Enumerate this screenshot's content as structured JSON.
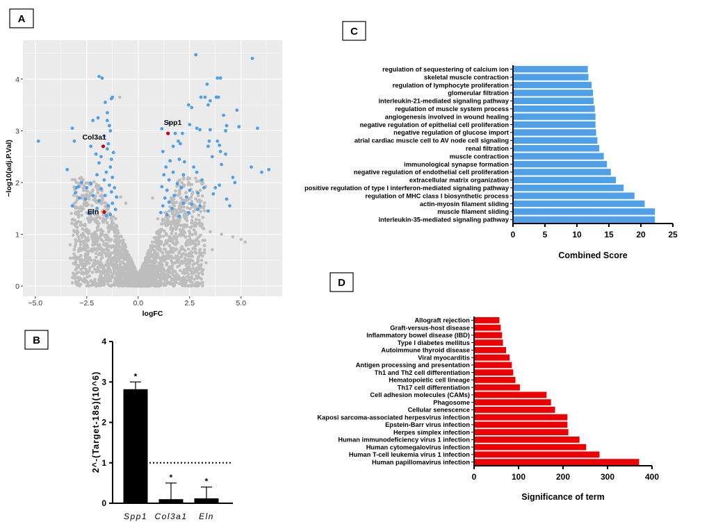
{
  "panels": {
    "a": "A",
    "b": "B",
    "c": "C",
    "d": "D"
  },
  "chart_data": [
    {
      "id": "A",
      "type": "scatter",
      "title": "",
      "xlabel": "logFC",
      "ylabel": "−log10(adj.P.Val)",
      "xlim": [
        -5.6,
        7.0
      ],
      "ylim": [
        -0.2,
        4.75
      ],
      "xticks": [
        -5.0,
        -2.5,
        0.0,
        2.5,
        5.0
      ],
      "xtick_labels": [
        "−5.0",
        "−2.5",
        "0.0",
        "2.5",
        "5.0"
      ],
      "yticks": [
        0,
        1,
        2,
        3,
        4
      ],
      "ytick_labels": [
        "0",
        "1",
        "2",
        "3",
        "4"
      ],
      "grid": true,
      "colors": {
        "background": "#ebebeb",
        "significant": "#4f9fe9",
        "nonsignificant": "#bdbdbd",
        "highlight": "#cc0000",
        "grid": "#ffffff"
      },
      "highlighted_genes": [
        {
          "name": "Col3a1",
          "x": -1.7,
          "y": 2.7
        },
        {
          "name": "Spp1",
          "x": 1.45,
          "y": 2.95
        },
        {
          "name": "Eln",
          "x": -1.65,
          "y": 1.43
        }
      ],
      "significant_points": [
        [
          2.8,
          4.47
        ],
        [
          5.55,
          4.4
        ],
        [
          -1.9,
          4.05
        ],
        [
          -1.75,
          4.02
        ],
        [
          3.85,
          4.02
        ],
        [
          4.0,
          4.02
        ],
        [
          -1.3,
          3.62
        ],
        [
          -1.25,
          3.65
        ],
        [
          3.05,
          3.65
        ],
        [
          3.25,
          3.65
        ],
        [
          3.8,
          3.65
        ],
        [
          3.9,
          3.65
        ],
        [
          3.5,
          3.58
        ],
        [
          2.45,
          3.5
        ],
        [
          2.6,
          3.45
        ],
        [
          3.4,
          3.5
        ],
        [
          4.8,
          3.4
        ],
        [
          -1.6,
          3.55
        ],
        [
          -1.5,
          3.35
        ],
        [
          -2.2,
          3.2
        ],
        [
          -1.5,
          3.2
        ],
        [
          -1.4,
          3.1
        ],
        [
          1.5,
          3.15
        ],
        [
          2.5,
          3.12
        ],
        [
          4.3,
          3.1
        ],
        [
          4.9,
          3.08
        ],
        [
          5.8,
          3.05
        ],
        [
          -3.2,
          3.05
        ],
        [
          -1.35,
          3.0
        ],
        [
          -1.65,
          2.9
        ],
        [
          1.15,
          3.04
        ],
        [
          2.85,
          3.05
        ],
        [
          3.0,
          3.02
        ],
        [
          3.5,
          3.02
        ],
        [
          4.25,
          3.0
        ],
        [
          1.8,
          2.95
        ],
        [
          2.15,
          2.95
        ],
        [
          -4.85,
          2.8
        ],
        [
          -3.1,
          2.8
        ],
        [
          3.45,
          2.8
        ],
        [
          3.85,
          2.8
        ],
        [
          -1.45,
          2.75
        ],
        [
          2.05,
          2.75
        ],
        [
          3.95,
          2.72
        ],
        [
          -2.3,
          2.7
        ],
        [
          -1.5,
          2.65
        ],
        [
          1.7,
          2.7
        ],
        [
          3.4,
          2.7
        ],
        [
          4.0,
          2.6
        ],
        [
          4.25,
          2.55
        ],
        [
          -1.2,
          2.58
        ],
        [
          1.2,
          2.6
        ],
        [
          -1.8,
          2.5
        ],
        [
          -1.3,
          2.45
        ],
        [
          2.0,
          2.45
        ],
        [
          3.6,
          2.5
        ],
        [
          -1.9,
          2.38
        ],
        [
          1.55,
          2.42
        ],
        [
          2.25,
          2.4
        ],
        [
          -1.35,
          2.3
        ],
        [
          1.35,
          2.3
        ],
        [
          4.05,
          2.35
        ],
        [
          5.5,
          2.3
        ],
        [
          -3.45,
          2.25
        ],
        [
          -1.55,
          2.2
        ],
        [
          1.7,
          2.2
        ],
        [
          6.35,
          2.25
        ],
        [
          -2.0,
          2.15
        ],
        [
          -1.25,
          2.1
        ],
        [
          1.25,
          2.15
        ],
        [
          2.2,
          2.15
        ],
        [
          2.85,
          2.2
        ],
        [
          6.0,
          2.2
        ],
        [
          -1.65,
          2.05
        ],
        [
          1.5,
          2.05
        ],
        [
          3.1,
          2.05
        ],
        [
          4.6,
          2.1
        ],
        [
          -2.75,
          2.0
        ],
        [
          -2.3,
          1.98
        ],
        [
          -1.4,
          1.95
        ],
        [
          1.9,
          1.98
        ],
        [
          4.7,
          2.0
        ],
        [
          -2.9,
          1.92
        ],
        [
          -2.5,
          1.9
        ],
        [
          -1.15,
          1.9
        ],
        [
          1.15,
          1.92
        ],
        [
          2.1,
          1.9
        ],
        [
          3.2,
          1.9
        ],
        [
          -1.8,
          1.88
        ],
        [
          1.4,
          1.85
        ],
        [
          2.5,
          1.85
        ],
        [
          -3.05,
          1.8
        ],
        [
          -1.3,
          1.82
        ],
        [
          2.9,
          1.8
        ],
        [
          -2.2,
          1.75
        ],
        [
          -1.6,
          1.75
        ],
        [
          1.75,
          1.75
        ],
        [
          3.65,
          1.78
        ],
        [
          -1.05,
          1.72
        ],
        [
          1.3,
          1.7
        ],
        [
          2.35,
          1.72
        ],
        [
          -2.55,
          1.68
        ],
        [
          -1.9,
          1.65
        ],
        [
          4.3,
          1.68
        ],
        [
          -1.25,
          1.6
        ],
        [
          1.5,
          1.62
        ],
        [
          2.2,
          1.6
        ],
        [
          2.6,
          1.58
        ],
        [
          -3.2,
          1.55
        ],
        [
          -1.45,
          1.55
        ],
        [
          1.2,
          1.55
        ],
        [
          3.0,
          1.55
        ],
        [
          4.45,
          1.55
        ],
        [
          -2.0,
          1.5
        ],
        [
          -1.1,
          1.48
        ],
        [
          1.65,
          1.5
        ],
        [
          2.9,
          1.48
        ],
        [
          -2.25,
          1.42
        ],
        [
          1.1,
          1.42
        ],
        [
          2.45,
          1.42
        ],
        [
          -1.35,
          1.38
        ],
        [
          1.4,
          1.38
        ],
        [
          3.4,
          1.45
        ],
        [
          -2.4,
          1.4
        ],
        [
          -1.55,
          1.36
        ],
        [
          2.0,
          1.35
        ],
        [
          -3.0,
          1.9
        ],
        [
          -2.85,
          1.7
        ],
        [
          3.75,
          1.9
        ],
        [
          3.95,
          1.95
        ],
        [
          2.7,
          2.3
        ],
        [
          1.95,
          2.8
        ],
        [
          -2.05,
          2.55
        ],
        [
          -1.95,
          3.25
        ],
        [
          4.15,
          3.3
        ],
        [
          3.35,
          3.9
        ]
      ],
      "nonsignificant_points": [
        [
          -0.9,
          3.65
        ],
        [
          -0.6,
          1.6
        ],
        [
          -0.85,
          1.72
        ],
        [
          -1.1,
          1.3
        ],
        [
          0.95,
          1.3
        ],
        [
          0.7,
          1.7
        ],
        [
          1.6,
          1.2
        ],
        [
          2.3,
          1.3
        ],
        [
          3.1,
          1.2
        ],
        [
          3.5,
          1.05
        ],
        [
          4.05,
          1.0
        ],
        [
          4.6,
          0.95
        ],
        [
          5.0,
          0.9
        ],
        [
          5.2,
          0.85
        ],
        [
          -2.5,
          1.1
        ],
        [
          -2.9,
          0.95
        ],
        [
          -1.95,
          1.2
        ],
        [
          -1.6,
          0.95
        ],
        [
          1.85,
          1.1
        ],
        [
          2.6,
          1.15
        ],
        [
          2.95,
          0.95
        ],
        [
          -3.3,
          0.8
        ],
        [
          3.6,
          0.7
        ],
        [
          -2.1,
          0.7
        ],
        [
          2.3,
          0.6
        ],
        [
          -1.75,
          0.55
        ],
        [
          1.95,
          0.5
        ],
        [
          3.3,
          0.45
        ],
        [
          2.95,
          0.4
        ],
        [
          -2.6,
          0.5
        ]
      ]
    },
    {
      "id": "B",
      "type": "bar",
      "categories": [
        "Spp1",
        "Col3a1",
        "Eln"
      ],
      "values": [
        2.82,
        0.1,
        0.12
      ],
      "errors_upper": [
        3.0,
        0.5,
        0.4
      ],
      "significance": [
        "*",
        "*",
        "*"
      ],
      "ylabel": "2^-(Target-18s)(10^6)",
      "ylim": [
        0,
        4
      ],
      "yticks": [
        0,
        1,
        2,
        3,
        4
      ],
      "ytick_labels": [
        "0",
        "1",
        "2",
        "3",
        "4"
      ],
      "reference_line": 1,
      "colors": {
        "bar": "#000000"
      }
    },
    {
      "id": "C",
      "type": "bar",
      "orientation": "horizontal",
      "categories": [
        "regulation of sequestering of calcium ion",
        "skeletal muscle contraction",
        "regulation of lymphocyte proliferation",
        "glomerular filtration",
        "interleukin-21-mediated signaling pathway",
        "regulation of muscle system process",
        "angiogenesis involved in wound healing",
        "negative regulation of epithelial cell proliferation",
        "negative regulation of glucose import",
        "atrial cardiac muscle cell to AV node cell signaling",
        "renal filtration",
        "muscle contraction",
        "immunological synapse formation",
        "negative regulation of endothelial cell proliferation",
        "extracellular matrix organization",
        "positive regulation of type I interferon-mediated signaling pathway",
        "regulation of MHC class I biosynthetic process",
        "actin-myosin filament sliding",
        "muscle filament sliding",
        "interleukin-35-mediated signaling pathway"
      ],
      "values": [
        11.7,
        11.8,
        12.3,
        12.5,
        12.6,
        12.8,
        12.9,
        12.9,
        13.0,
        13.2,
        13.5,
        14.2,
        14.7,
        15.3,
        16.1,
        17.3,
        19.0,
        20.6,
        22.2,
        22.2
      ],
      "xlabel": "Combined Score",
      "xlim": [
        0,
        25
      ],
      "xticks": [
        0,
        5,
        10,
        15,
        20,
        25
      ],
      "xtick_labels": [
        "0",
        "5",
        "10",
        "15",
        "20",
        "25"
      ],
      "colors": {
        "bar": "#4f9fe9"
      }
    },
    {
      "id": "D",
      "type": "bar",
      "orientation": "horizontal",
      "categories": [
        "Allograft rejection",
        "Graft-versus-host disease",
        "Inflammatory bowel disease (IBD)",
        "Type I diabetes mellitus",
        "Autoimmune thyroid disease",
        "Viral myocarditis",
        "Antigen processing and presentation",
        "Th1 and Th2 cell differentiation",
        "Hematopoietic cell lineage",
        "Th17 cell differentiation",
        "Cell adhesion molecules (CAMs)",
        "Phagosome",
        "Cellular senescence",
        "Kaposi sarcoma-associated herpesvirus infection",
        "Epstein-Barr virus infection",
        "Herpes simplex infection",
        "Human immunodeficiency virus 1 infection",
        "Human cytomegalovirus infection",
        "Human T-cell leukemia virus 1 infection",
        "Human papillomavirus infection"
      ],
      "values": [
        57,
        60,
        63,
        65,
        72,
        80,
        85,
        88,
        93,
        103,
        163,
        173,
        182,
        210,
        210,
        212,
        237,
        252,
        282,
        371
      ],
      "xlabel": "Significance of term",
      "xlim": [
        0,
        400
      ],
      "xticks": [
        0,
        100,
        200,
        300,
        400
      ],
      "xtick_labels": [
        "0",
        "100",
        "200",
        "300",
        "400"
      ],
      "colors": {
        "bar": "#ee0000"
      }
    }
  ]
}
